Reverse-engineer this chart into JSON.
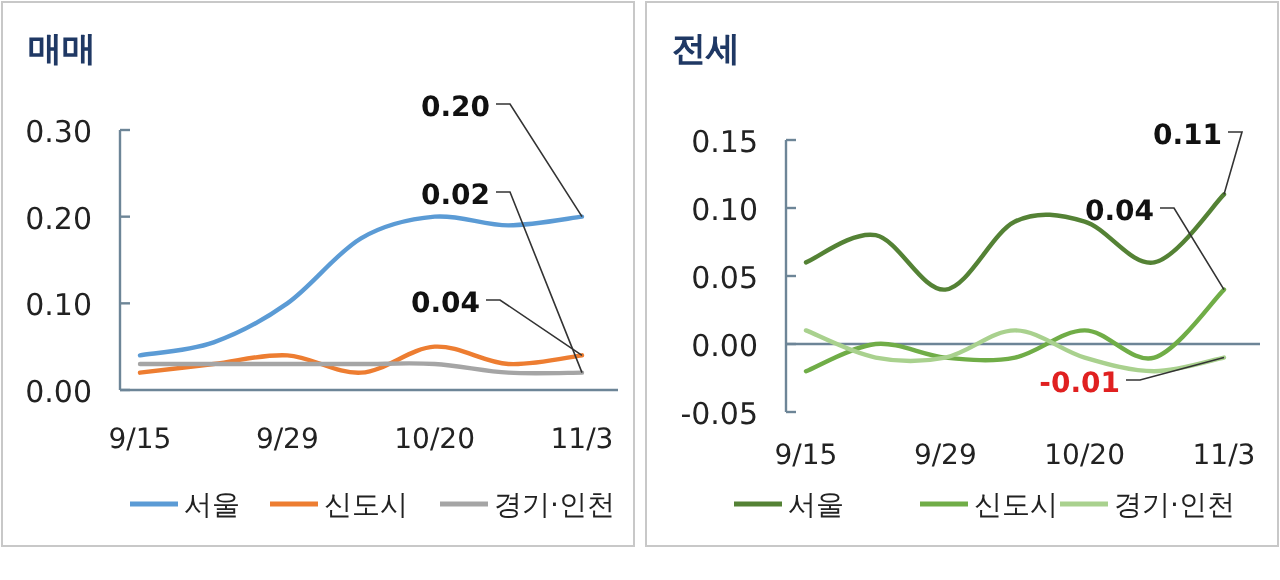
{
  "chart_data": [
    {
      "type": "line",
      "title": "매매",
      "categories": [
        "9/15",
        null,
        "9/29",
        null,
        "10/20",
        null,
        "11/3"
      ],
      "ylim": [
        0,
        0.3
      ],
      "yticks": [
        {
          "value": 0,
          "label": "0.00"
        },
        {
          "value": 0.1,
          "label": "0.10"
        },
        {
          "value": 0.2,
          "label": "0.20"
        },
        {
          "value": 0.3,
          "label": "0.30"
        }
      ],
      "grid": false,
      "legend": "bottom",
      "marker": "none",
      "series": [
        {
          "name": "서울",
          "color": "#5b9bd5",
          "values": [
            0.04,
            0.055,
            0.1,
            0.175,
            0.2,
            0.19,
            0.2
          ]
        },
        {
          "name": "신도시",
          "color": "#ed7d31",
          "values": [
            0.02,
            0.03,
            0.04,
            0.02,
            0.05,
            0.03,
            0.04
          ]
        },
        {
          "name": "경기·인천",
          "color": "#a5a5a5",
          "values": [
            0.03,
            0.03,
            0.03,
            0.03,
            0.03,
            0.02,
            0.02
          ]
        }
      ],
      "annotations": [
        {
          "text": "0.20",
          "x": "11/3",
          "y": 0.2
        },
        {
          "text": "0.02",
          "x": "11/3",
          "y": 0.02
        },
        {
          "text": "0.04",
          "x": "11/3",
          "y": 0.04
        }
      ]
    },
    {
      "type": "line",
      "title": "전세",
      "categories": [
        "9/15",
        null,
        "9/29",
        null,
        "10/20",
        null,
        "11/3"
      ],
      "ref_lines": [
        {
          "axis": "y",
          "value": 0,
          "color": "#6d8597"
        }
      ],
      "ylim": [
        -0.05,
        0.15
      ],
      "yticks": [
        {
          "value": -0.05,
          "label": "-0.05"
        },
        {
          "value": 0,
          "label": "0.00"
        },
        {
          "value": 0.05,
          "label": "0.05"
        },
        {
          "value": 0.1,
          "label": "0.10"
        },
        {
          "value": 0.15,
          "label": "0.15"
        }
      ],
      "grid": false,
      "legend": "bottom",
      "marker": "none",
      "series": [
        {
          "name": "서울",
          "color": "#548235",
          "values": [
            0.06,
            0.08,
            0.04,
            0.09,
            0.09,
            0.06,
            0.11
          ]
        },
        {
          "name": "신도시",
          "color": "#70ad47",
          "values": [
            -0.02,
            0.0,
            -0.01,
            -0.01,
            0.01,
            -0.01,
            0.04
          ]
        },
        {
          "name": "경기·인천",
          "color": "#a9d18e",
          "values": [
            0.01,
            -0.01,
            -0.01,
            0.01,
            -0.01,
            -0.02,
            -0.01
          ]
        }
      ],
      "annotations": [
        {
          "text": "0.11",
          "x": "11/3",
          "y": 0.11
        },
        {
          "text": "0.04",
          "x": "11/3",
          "y": 0.04
        },
        {
          "text": "-0.01",
          "x": "11/3",
          "y": -0.01
        }
      ]
    }
  ]
}
